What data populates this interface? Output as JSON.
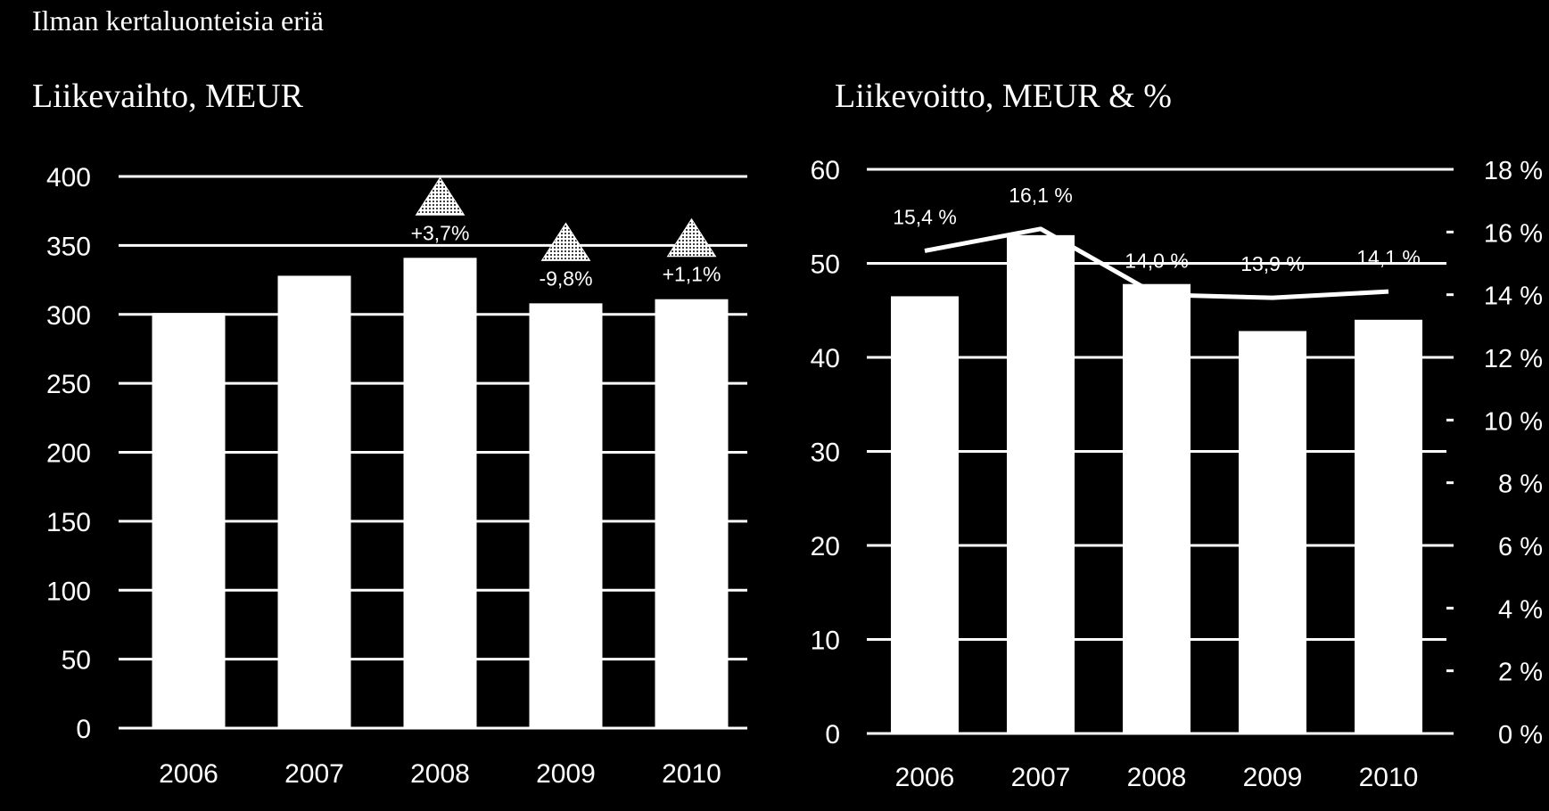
{
  "header": "Ilman kertaluonteisia eriä",
  "chart_data": [
    {
      "type": "bar",
      "title": "Liikevaihto, MEUR",
      "categories": [
        "2006",
        "2007",
        "2008",
        "2009",
        "2010"
      ],
      "values": [
        301,
        328,
        341,
        308,
        311
      ],
      "ylim": [
        0,
        400
      ],
      "yticks": [
        "0",
        "50",
        "100",
        "150",
        "200",
        "250",
        "300",
        "350",
        "400"
      ],
      "grid": true,
      "annotations": [
        {
          "category": "2008",
          "text": "+3,7%",
          "icon": "triangle-up-icon"
        },
        {
          "category": "2009",
          "text": "-9,8%",
          "icon": "triangle-up-icon"
        },
        {
          "category": "2010",
          "text": "+1,1%",
          "icon": "triangle-up-icon"
        }
      ],
      "colors": {
        "background": "#000000",
        "bars": "#ffffff",
        "grid": "#ffffff",
        "text": "#ffffff"
      }
    },
    {
      "type": "bar",
      "title": "Liikevoitto, MEUR & %",
      "categories": [
        "2006",
        "2007",
        "2008",
        "2009",
        "2010"
      ],
      "values": [
        46.5,
        53,
        47.8,
        42.8,
        44
      ],
      "ylim": [
        0,
        60
      ],
      "yticks": [
        "0",
        "10",
        "20",
        "30",
        "40",
        "50",
        "60"
      ],
      "secondary_axis": {
        "ylim": [
          0,
          18
        ],
        "ticks": [
          "0 %",
          "2 %",
          "4 %",
          "6 %",
          "8 %",
          "10 %",
          "12 %",
          "14 %",
          "16 %",
          "18 %"
        ]
      },
      "line_series": {
        "type": "line",
        "axis": "secondary",
        "values": [
          15.4,
          16.1,
          14.0,
          13.9,
          14.1
        ],
        "labels": [
          "15,4 %",
          "16,1 %",
          "14,0 %",
          "13,9 %",
          "14,1 %"
        ]
      },
      "grid": true,
      "colors": {
        "background": "#000000",
        "bars": "#ffffff",
        "line": "#ffffff",
        "grid": "#ffffff",
        "text": "#ffffff"
      }
    }
  ]
}
